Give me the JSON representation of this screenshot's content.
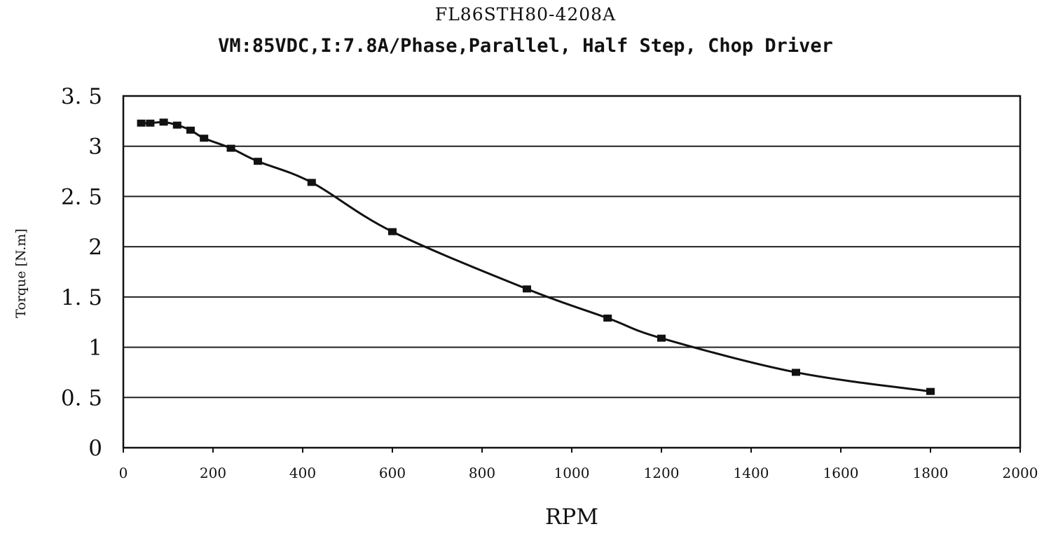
{
  "chart_data": {
    "type": "line",
    "title": "FL86STH80-4208A",
    "subtitle": "VM:85VDC,I:7.8A/Phase,Parallel, Half Step, Chop Driver",
    "xlabel": "RPM",
    "ylabel": "Torque [N.m]",
    "xlim": [
      0,
      2000
    ],
    "ylim": [
      0,
      3.5
    ],
    "x_ticks": [
      "0",
      "200",
      "400",
      "600",
      "800",
      "1000",
      "1200",
      "1400",
      "1600",
      "1800",
      "2000"
    ],
    "y_ticks": [
      "0",
      "0.5",
      "1",
      "1.5",
      "2",
      "2.5",
      "3",
      "3.5"
    ],
    "grid": "horizontal",
    "legend": "none",
    "series": [
      {
        "color": "#111111",
        "marker": "square",
        "x": [
          40,
          60,
          90,
          120,
          150,
          180,
          240,
          300,
          420,
          600,
          900,
          1080,
          1200,
          1500,
          1800
        ],
        "y": [
          3.23,
          3.23,
          3.24,
          3.21,
          3.16,
          3.08,
          2.98,
          2.85,
          2.64,
          2.15,
          1.58,
          1.29,
          1.09,
          0.75,
          0.56
        ]
      }
    ]
  }
}
